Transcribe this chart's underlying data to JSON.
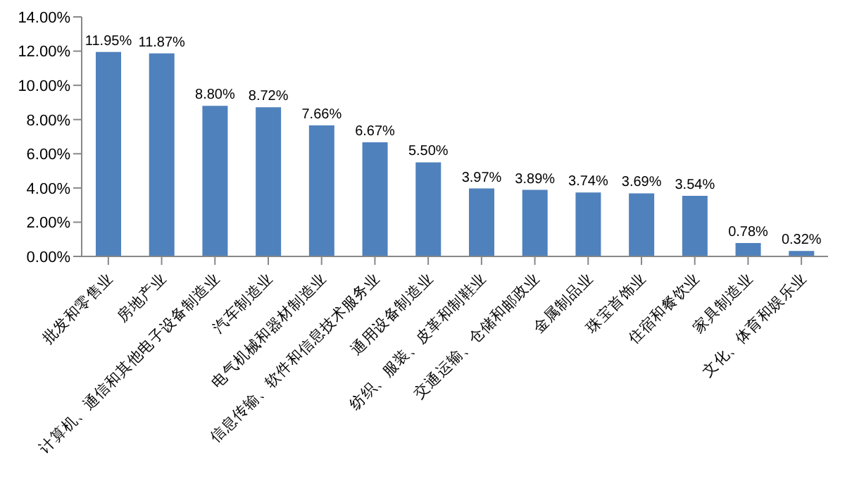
{
  "chart_data": {
    "type": "bar",
    "categories": [
      "批发和零售业",
      "房地产业",
      "计算机、通信和其他电子设备制造业",
      "汽车制造业",
      "电气机械和器材制造业",
      "信息传输、软件和信息技术服务业",
      "通用设备制造业",
      "纺织、服装、皮革和制鞋业",
      "交通运输、仓储和邮政业",
      "金属制品业",
      "珠宝首饰业",
      "住宿和餐饮业",
      "家具制造业",
      "文化、体育和娱乐业"
    ],
    "values": [
      11.95,
      11.87,
      8.8,
      8.72,
      7.66,
      6.67,
      5.5,
      3.97,
      3.89,
      3.74,
      3.69,
      3.54,
      0.78,
      0.32
    ],
    "value_labels": [
      "11.95%",
      "11.87%",
      "8.80%",
      "8.72%",
      "7.66%",
      "6.67%",
      "5.50%",
      "3.97%",
      "3.89%",
      "3.74%",
      "3.69%",
      "3.54%",
      "0.78%",
      "0.32%"
    ],
    "color": "#4f81bd",
    "ylim": [
      0,
      14
    ],
    "yticks": [
      {
        "value": 0,
        "label": "0.00%"
      },
      {
        "value": 2,
        "label": "2.00%"
      },
      {
        "value": 4,
        "label": "4.00%"
      },
      {
        "value": 6,
        "label": "6.00%"
      },
      {
        "value": 8,
        "label": "8.00%"
      },
      {
        "value": 10,
        "label": "10.00%"
      },
      {
        "value": 12,
        "label": "12.00%"
      },
      {
        "value": 14,
        "label": "14.00%"
      }
    ],
    "grid": false,
    "legend": false
  }
}
